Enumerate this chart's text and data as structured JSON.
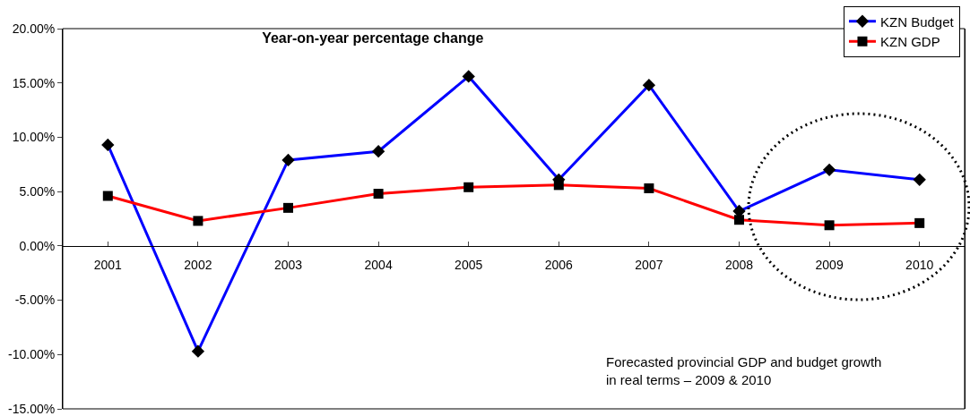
{
  "chart_data": {
    "type": "line",
    "title": "Year-on-year percentage change",
    "categories": [
      "2001",
      "2002",
      "2003",
      "2004",
      "2005",
      "2006",
      "2007",
      "2008",
      "2009",
      "2010"
    ],
    "series": [
      {
        "name": "KZN Budget",
        "color": "#0000ff",
        "marker": "diamond",
        "values": [
          9.3,
          -9.7,
          7.9,
          8.7,
          15.6,
          6.1,
          14.8,
          3.2,
          7.0,
          6.1
        ]
      },
      {
        "name": "KZN GDP",
        "color": "#ff0000",
        "marker": "square",
        "values": [
          4.6,
          2.3,
          3.5,
          4.8,
          5.4,
          5.6,
          5.3,
          2.4,
          1.9,
          2.1
        ]
      }
    ],
    "ylim": [
      -15,
      20
    ],
    "yticks": [
      {
        "value": -15,
        "label": "-15.00%"
      },
      {
        "value": -10,
        "label": "-10.00%"
      },
      {
        "value": -5,
        "label": "-5.00%"
      },
      {
        "value": 0,
        "label": "0.00%"
      },
      {
        "value": 5,
        "label": "5.00%"
      },
      {
        "value": 10,
        "label": "10.00%"
      },
      {
        "value": 15,
        "label": "15.00%"
      },
      {
        "value": 20,
        "label": "20.00%"
      }
    ],
    "grid": false,
    "legend": "top right",
    "line_style": "solid",
    "annotations": [
      "Forecasted provincial GDP and budget growth in real terms – 2009 & 2010"
    ]
  }
}
